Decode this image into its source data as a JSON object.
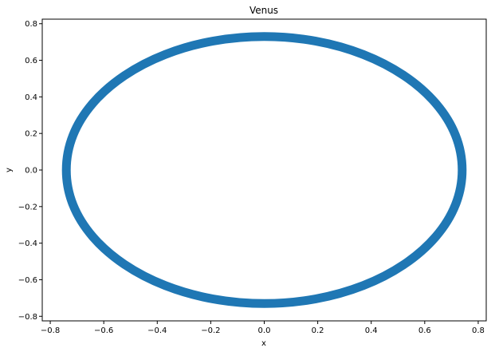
{
  "chart_data": {
    "type": "line",
    "title": "Venus",
    "xlabel": "x",
    "ylabel": "y",
    "xlim": [
      -0.83,
      0.83
    ],
    "ylim": [
      -0.825,
      0.825
    ],
    "x_ticks": [
      -0.8,
      -0.6,
      -0.4,
      -0.2,
      0.0,
      0.2,
      0.4,
      0.6,
      0.8
    ],
    "x_tick_labels": [
      "−0.8",
      "−0.6",
      "−0.4",
      "−0.2",
      "0.0",
      "0.2",
      "0.4",
      "0.6",
      "0.8"
    ],
    "y_ticks": [
      0.8,
      0.6,
      0.4,
      0.2,
      0.0,
      -0.2,
      -0.4,
      -0.6,
      -0.8
    ],
    "y_tick_labels": [
      "0.8",
      "0.6",
      "0.4",
      "0.2",
      "0.0",
      "−0.2",
      "−0.4",
      "−0.6",
      "−0.8"
    ],
    "grid": false,
    "legend": "none",
    "series": [
      {
        "color": "#1f77b4",
        "x": [
          0.74,
          0.715,
          0.641,
          0.523,
          0.37,
          0.192,
          0.0,
          -0.192,
          -0.37,
          -0.523,
          -0.641,
          -0.715,
          -0.74,
          -0.715,
          -0.641,
          -0.523,
          -0.37,
          -0.192,
          0.0,
          0.192,
          0.37,
          0.523,
          0.641,
          0.715,
          0.74
        ],
        "y": [
          0.0,
          0.19,
          0.365,
          0.516,
          0.632,
          0.705,
          0.73,
          0.705,
          0.632,
          0.516,
          0.365,
          0.19,
          0.0,
          -0.19,
          -0.365,
          -0.516,
          -0.632,
          -0.705,
          -0.73,
          -0.705,
          -0.632,
          -0.516,
          -0.365,
          -0.19,
          0.0
        ]
      }
    ]
  }
}
